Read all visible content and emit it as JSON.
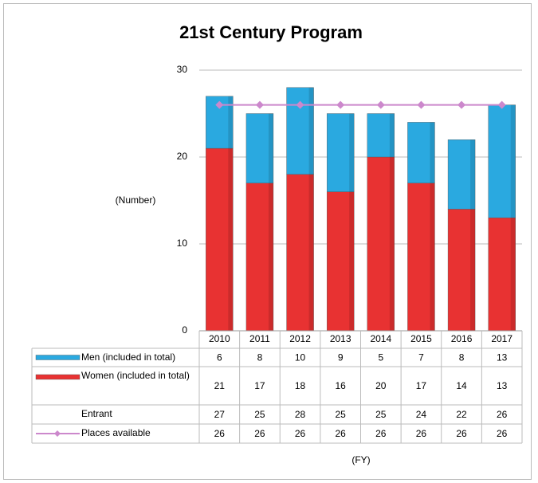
{
  "chart_data": {
    "type": "bar",
    "stacked": true,
    "title": "21st Century Program",
    "y_label": "(Number)",
    "x_label": "(FY)",
    "categories": [
      "2010",
      "2011",
      "2012",
      "2013",
      "2014",
      "2015",
      "2016",
      "2017"
    ],
    "series": [
      {
        "name": "Men (included in total)",
        "color": "#2aa9e0",
        "type": "bar",
        "values": [
          6,
          8,
          10,
          9,
          5,
          7,
          8,
          13
        ]
      },
      {
        "name": "Women (included in total)",
        "color": "#e83232",
        "type": "bar",
        "values": [
          21,
          17,
          18,
          16,
          20,
          17,
          14,
          13
        ]
      },
      {
        "name": "Entrant",
        "type": "table",
        "values": [
          27,
          25,
          28,
          25,
          25,
          24,
          22,
          26
        ]
      },
      {
        "name": "Places available",
        "color": "#cc88cc",
        "type": "line",
        "values": [
          26,
          26,
          26,
          26,
          26,
          26,
          26,
          26
        ]
      }
    ],
    "ylim": [
      0,
      30
    ],
    "yticks": [
      0,
      10,
      20,
      30
    ],
    "grid": true
  }
}
